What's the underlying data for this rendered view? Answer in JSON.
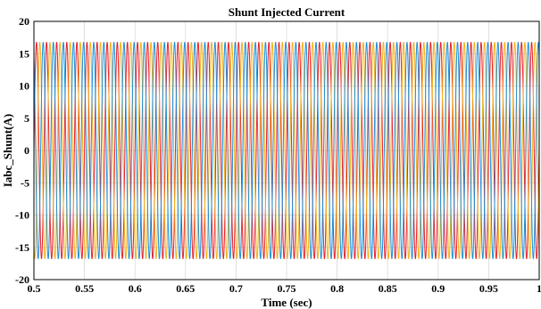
{
  "chart_data": {
    "type": "line",
    "title": "Shunt Injected Current",
    "xlabel": "Time (sec)",
    "ylabel": "Iabc_Shunt(A)",
    "xlim": [
      0.5,
      1.0
    ],
    "ylim": [
      -20,
      20
    ],
    "x_ticks": [
      "0.5",
      "0.55",
      "0.6",
      "0.65",
      "0.7",
      "0.75",
      "0.8",
      "0.85",
      "0.9",
      "0.95",
      "1"
    ],
    "y_ticks": [
      "20",
      "15",
      "10",
      "5",
      "0",
      "-5",
      "-10",
      "-15",
      "-20"
    ],
    "grid": true,
    "frequency_hz": 100,
    "amplitude": 16.8,
    "series": [
      {
        "color": "#e8202a",
        "phase_deg": 0
      },
      {
        "color": "#f0b21b",
        "phase_deg": -120
      },
      {
        "color": "#1f8fd6",
        "phase_deg": 120
      }
    ]
  }
}
